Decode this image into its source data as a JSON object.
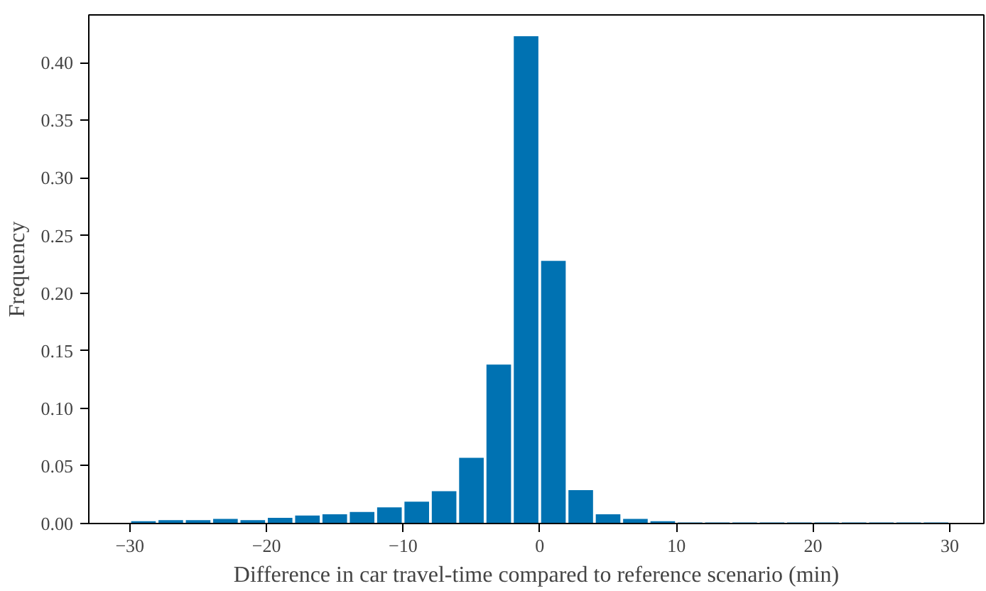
{
  "chart_data": {
    "type": "histogram",
    "xlabel": "Difference in car travel-time compared to reference scenario (min)",
    "ylabel": "Frequency",
    "bins": [
      -30,
      -28,
      -26,
      -24,
      -22,
      -20,
      -18,
      -16,
      -14,
      -12,
      -10,
      -8,
      -6,
      -4,
      -2,
      0,
      2,
      4,
      6,
      8,
      10,
      12,
      14,
      16,
      18,
      20,
      22,
      24,
      26,
      28,
      30
    ],
    "values": [
      0.002,
      0.003,
      0.003,
      0.004,
      0.003,
      0.005,
      0.007,
      0.008,
      0.01,
      0.014,
      0.019,
      0.028,
      0.057,
      0.138,
      0.423,
      0.228,
      0.029,
      0.008,
      0.004,
      0.002,
      0.001,
      0.001,
      0.001,
      0.001,
      0.001,
      0.001,
      0.001,
      0.001,
      0.001,
      0.001
    ],
    "color": "#0072b2",
    "xlim": [
      -33,
      32.5
    ],
    "ylim": [
      0,
      0.4415
    ],
    "xticks": [
      {
        "value": -30,
        "label": "−30"
      },
      {
        "value": -20,
        "label": "−20"
      },
      {
        "value": -10,
        "label": "−10"
      },
      0,
      10,
      20,
      30
    ],
    "yticks": [
      {
        "value": 0,
        "label": "0.00"
      },
      {
        "value": 0.05,
        "label": "0.05"
      },
      {
        "value": 0.1,
        "label": "0.10"
      },
      {
        "value": 0.15,
        "label": "0.15"
      },
      {
        "value": 0.2,
        "label": "0.20"
      },
      {
        "value": 0.25,
        "label": "0.25"
      },
      {
        "value": 0.3,
        "label": "0.30"
      },
      {
        "value": 0.35,
        "label": "0.35"
      },
      {
        "value": 0.4,
        "label": "0.40"
      }
    ],
    "grid": false
  }
}
